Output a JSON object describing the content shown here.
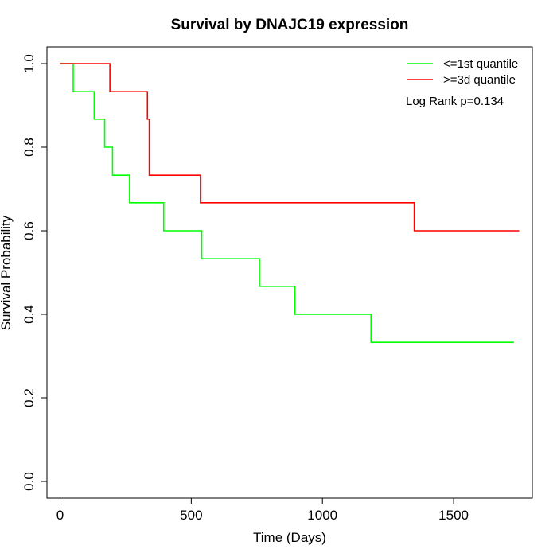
{
  "chart_data": {
    "type": "line",
    "title": "Survival by DNAJC19 expression",
    "xlabel": "Time (Days)",
    "ylabel": "Survival Probability",
    "xlim": [
      -50,
      1800
    ],
    "ylim": [
      -0.04,
      1.04
    ],
    "x_ticks": [
      0,
      500,
      1000,
      1500
    ],
    "y_ticks": [
      0.0,
      0.2,
      0.4,
      0.6,
      0.8,
      1.0
    ],
    "x_tick_labels": [
      "0",
      "500",
      "1000",
      "1500"
    ],
    "y_tick_labels": [
      "0.0",
      "0.2",
      "0.4",
      "0.6",
      "0.8",
      "1.0"
    ],
    "grid": false,
    "legend_position": "top-right",
    "annotation": "Log Rank p=0.134",
    "series": [
      {
        "name": "<=1st quantile",
        "color": "#00ff00",
        "steps": [
          [
            0,
            1.0
          ],
          [
            50,
            0.933
          ],
          [
            130,
            0.867
          ],
          [
            170,
            0.8
          ],
          [
            200,
            0.733
          ],
          [
            265,
            0.667
          ],
          [
            395,
            0.6
          ],
          [
            540,
            0.533
          ],
          [
            760,
            0.467
          ],
          [
            895,
            0.4
          ],
          [
            1185,
            0.333
          ],
          [
            1730,
            0.333
          ]
        ]
      },
      {
        "name": ">=3d quantile",
        "color": "#ff0000",
        "steps": [
          [
            0,
            1.0
          ],
          [
            190,
            0.933
          ],
          [
            333,
            0.867
          ],
          [
            340,
            0.733
          ],
          [
            535,
            0.667
          ],
          [
            1350,
            0.6
          ],
          [
            1750,
            0.6
          ]
        ]
      }
    ]
  }
}
